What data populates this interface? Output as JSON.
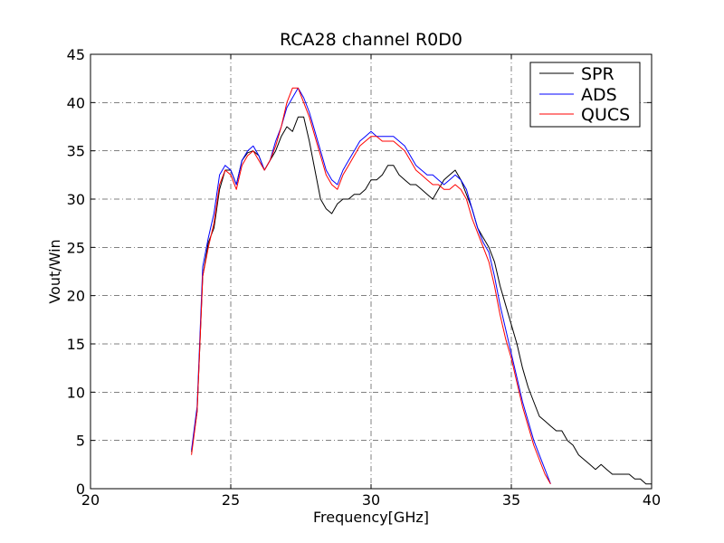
{
  "chart_data": {
    "type": "line",
    "title": "RCA28 channel R0D0",
    "xlabel": "Frequency[GHz]",
    "ylabel": "Vout/Win",
    "xlim": [
      20,
      40
    ],
    "ylim": [
      0,
      45
    ],
    "xticks": [
      20,
      25,
      30,
      35,
      40
    ],
    "yticks": [
      0,
      5,
      10,
      15,
      20,
      25,
      30,
      35,
      40,
      45
    ],
    "xtick_labels": [
      "20",
      "25",
      "30",
      "35",
      "40"
    ],
    "ytick_labels": [
      "0",
      "5",
      "10",
      "15",
      "20",
      "25",
      "30",
      "35",
      "40",
      "45"
    ],
    "grid": true,
    "legend_position": "top-right",
    "series": [
      {
        "name": "SPR",
        "color": "#000000",
        "x": [
          23.6,
          23.8,
          24.0,
          24.2,
          24.4,
          24.6,
          24.8,
          25.0,
          25.2,
          25.4,
          25.6,
          25.8,
          26.0,
          26.2,
          26.4,
          26.6,
          26.8,
          27.0,
          27.2,
          27.4,
          27.6,
          27.8,
          28.0,
          28.2,
          28.4,
          28.6,
          28.8,
          29.0,
          29.2,
          29.4,
          29.6,
          29.8,
          30.0,
          30.2,
          30.4,
          30.6,
          30.8,
          31.0,
          31.2,
          31.4,
          31.6,
          31.8,
          32.0,
          32.2,
          32.4,
          32.6,
          32.8,
          33.0,
          33.2,
          33.4,
          33.6,
          33.8,
          34.0,
          34.2,
          34.4,
          34.6,
          34.8,
          35.0,
          35.2,
          35.4,
          35.6,
          35.8,
          36.0,
          36.2,
          36.4,
          36.6,
          36.8,
          37.0,
          37.2,
          37.4,
          37.6,
          37.8,
          38.0,
          38.2,
          38.4,
          38.6,
          38.8,
          39.0,
          39.2,
          39.4,
          39.6,
          39.8,
          40.0
        ],
        "y": [
          3.8,
          8.0,
          22.0,
          25.5,
          27.0,
          31.0,
          33.0,
          33.0,
          31.5,
          34.0,
          34.8,
          35.0,
          34.5,
          33.0,
          34.0,
          35.0,
          36.5,
          37.5,
          37.0,
          38.5,
          38.5,
          36.0,
          33.0,
          30.0,
          29.0,
          28.5,
          29.5,
          30.0,
          30.0,
          30.5,
          30.5,
          31.0,
          32.0,
          32.0,
          32.5,
          33.5,
          33.5,
          32.5,
          32.0,
          31.5,
          31.5,
          31.0,
          30.5,
          30.0,
          31.0,
          32.0,
          32.5,
          33.0,
          32.0,
          30.5,
          29.0,
          27.0,
          26.0,
          25.0,
          23.5,
          21.0,
          19.0,
          17.0,
          15.0,
          12.5,
          10.5,
          9.0,
          7.5,
          7.0,
          6.5,
          6.0,
          6.0,
          5.0,
          4.5,
          3.5,
          3.0,
          2.5,
          2.0,
          2.5,
          2.0,
          1.5,
          1.5,
          1.5,
          1.5,
          1.0,
          1.0,
          0.5,
          0.5
        ]
      },
      {
        "name": "ADS",
        "color": "#0000ff",
        "x": [
          23.6,
          23.8,
          24.0,
          24.2,
          24.4,
          24.6,
          24.8,
          25.0,
          25.2,
          25.4,
          25.6,
          25.8,
          26.0,
          26.2,
          26.4,
          26.6,
          26.8,
          27.0,
          27.2,
          27.4,
          27.6,
          27.8,
          28.0,
          28.2,
          28.4,
          28.6,
          28.8,
          29.0,
          29.2,
          29.4,
          29.6,
          29.8,
          30.0,
          30.2,
          30.4,
          30.6,
          30.8,
          31.0,
          31.2,
          31.4,
          31.6,
          31.8,
          32.0,
          32.2,
          32.4,
          32.6,
          32.8,
          33.0,
          33.2,
          33.4,
          33.6,
          33.8,
          34.0,
          34.2,
          34.4,
          34.6,
          34.8,
          35.0,
          35.2,
          35.4,
          35.6,
          35.8,
          36.0,
          36.2,
          36.4
        ],
        "y": [
          4.0,
          8.5,
          23.0,
          26.0,
          28.5,
          32.5,
          33.5,
          33.0,
          31.5,
          34.0,
          35.0,
          35.5,
          34.5,
          33.0,
          34.0,
          36.0,
          37.5,
          39.5,
          40.5,
          41.5,
          40.5,
          39.0,
          37.0,
          35.0,
          33.0,
          32.0,
          31.5,
          33.0,
          34.0,
          35.0,
          36.0,
          36.5,
          37.0,
          36.5,
          36.5,
          36.5,
          36.5,
          36.0,
          35.5,
          34.5,
          33.5,
          33.0,
          32.5,
          32.5,
          32.0,
          31.5,
          32.0,
          32.5,
          32.0,
          31.0,
          29.0,
          27.0,
          25.5,
          24.5,
          22.0,
          19.0,
          16.5,
          14.0,
          11.5,
          9.0,
          7.0,
          5.0,
          3.5,
          2.0,
          0.5
        ]
      },
      {
        "name": "QUCS",
        "color": "#ff0000",
        "x": [
          23.6,
          23.8,
          24.0,
          24.2,
          24.4,
          24.6,
          24.8,
          25.0,
          25.2,
          25.4,
          25.6,
          25.8,
          26.0,
          26.2,
          26.4,
          26.6,
          26.8,
          27.0,
          27.2,
          27.4,
          27.6,
          27.8,
          28.0,
          28.2,
          28.4,
          28.6,
          28.8,
          29.0,
          29.2,
          29.4,
          29.6,
          29.8,
          30.0,
          30.2,
          30.4,
          30.6,
          30.8,
          31.0,
          31.2,
          31.4,
          31.6,
          31.8,
          32.0,
          32.2,
          32.4,
          32.6,
          32.8,
          33.0,
          33.2,
          33.4,
          33.6,
          33.8,
          34.0,
          34.2,
          34.4,
          34.6,
          34.8,
          35.0,
          35.2,
          35.4,
          35.6,
          35.8,
          36.0,
          36.2,
          36.4
        ],
        "y": [
          3.5,
          8.0,
          22.0,
          25.0,
          27.5,
          31.5,
          33.0,
          32.5,
          31.0,
          33.5,
          34.5,
          35.0,
          34.0,
          33.0,
          34.0,
          35.5,
          37.5,
          40.0,
          41.5,
          41.5,
          40.0,
          38.5,
          36.5,
          34.5,
          32.5,
          31.5,
          31.0,
          32.5,
          33.5,
          34.5,
          35.5,
          36.0,
          36.5,
          36.5,
          36.0,
          36.0,
          36.0,
          35.5,
          35.0,
          34.0,
          33.0,
          32.5,
          32.0,
          31.5,
          31.5,
          31.0,
          31.0,
          31.5,
          31.0,
          30.0,
          28.0,
          26.5,
          25.0,
          23.5,
          21.0,
          18.0,
          15.5,
          13.5,
          11.0,
          8.5,
          6.5,
          4.5,
          3.0,
          1.5,
          0.5
        ]
      }
    ]
  }
}
